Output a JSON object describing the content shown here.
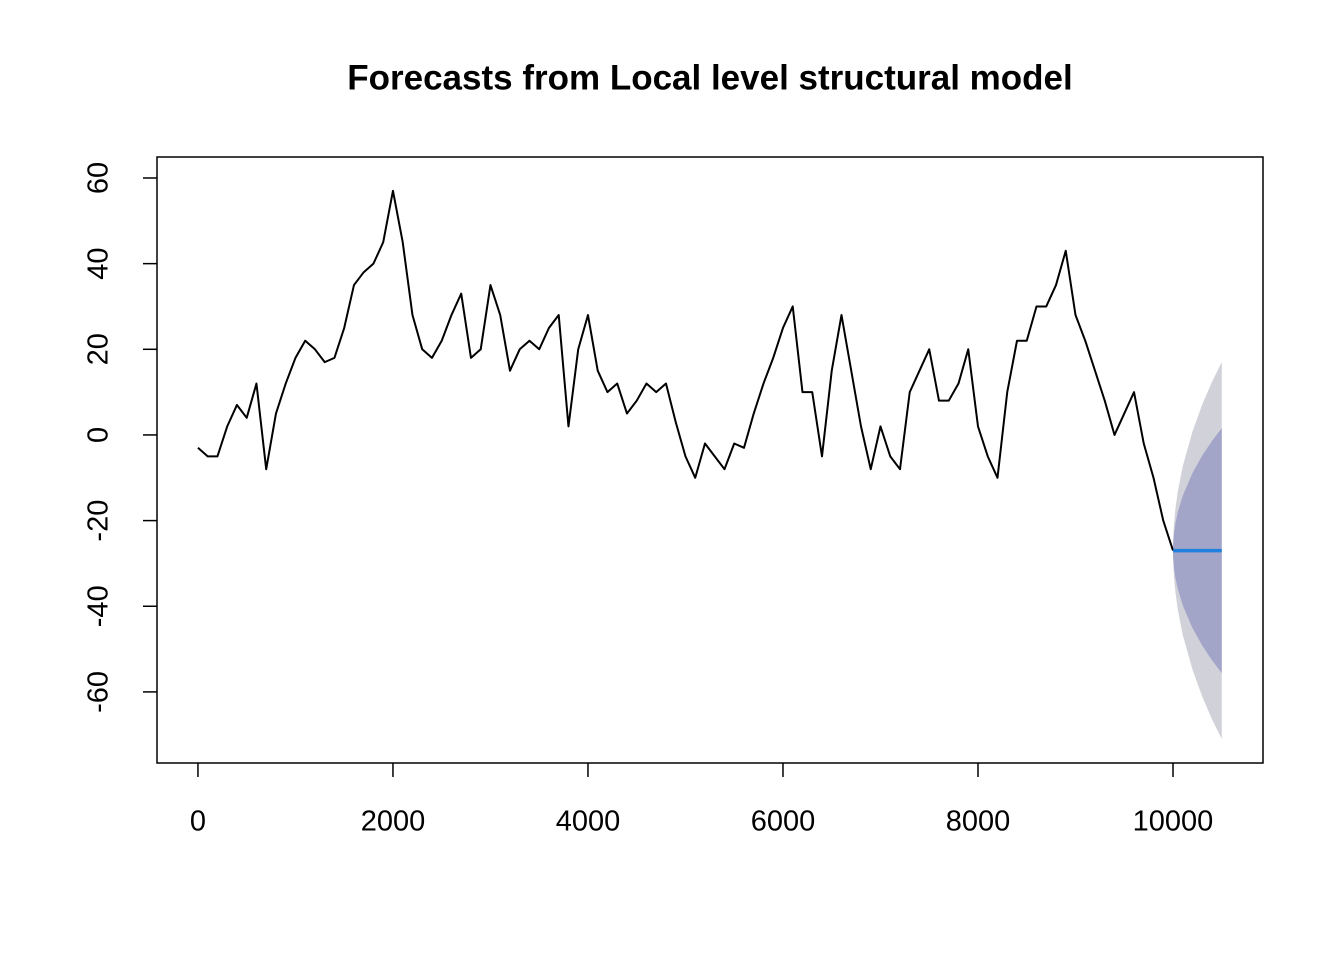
{
  "chart_data": {
    "type": "line",
    "title": "Forecasts from Local level structural model",
    "xlim": [
      -420,
      10923
    ],
    "ylim": [
      -76.6,
      64.9
    ],
    "xticks": [
      0,
      2000,
      4000,
      6000,
      8000,
      10000
    ],
    "yticks": [
      -60,
      -40,
      -20,
      0,
      20,
      40,
      60
    ],
    "series": [
      {
        "color": "#000000",
        "x": [
          0,
          100,
          200,
          300,
          400,
          500,
          600,
          700,
          800,
          900,
          1000,
          1100,
          1200,
          1300,
          1400,
          1500,
          1600,
          1700,
          1800,
          1900,
          2000,
          2100,
          2200,
          2300,
          2400,
          2500,
          2600,
          2700,
          2800,
          2900,
          3000,
          3100,
          3200,
          3300,
          3400,
          3500,
          3600,
          3700,
          3800,
          3900,
          4000,
          4100,
          4200,
          4300,
          4400,
          4500,
          4600,
          4700,
          4800,
          4900,
          5000,
          5100,
          5200,
          5300,
          5400,
          5500,
          5600,
          5700,
          5800,
          5900,
          6000,
          6100,
          6200,
          6300,
          6400,
          6500,
          6600,
          6700,
          6800,
          6900,
          7000,
          7100,
          7200,
          7300,
          7400,
          7500,
          7600,
          7700,
          7800,
          7900,
          8000,
          8100,
          8200,
          8300,
          8400,
          8500,
          8600,
          8700,
          8800,
          8900,
          9000,
          9100,
          9200,
          9300,
          9400,
          9500,
          9600,
          9700,
          9800,
          9900,
          10000
        ],
        "values": [
          -3,
          -5,
          -5,
          2,
          7,
          4,
          12,
          -8,
          5,
          12,
          18,
          22,
          20,
          17,
          18,
          25,
          35,
          38,
          40,
          45,
          57,
          45,
          28,
          20,
          18,
          22,
          28,
          33,
          18,
          20,
          35,
          28,
          15,
          20,
          22,
          20,
          25,
          28,
          2,
          20,
          28,
          15,
          10,
          12,
          5,
          8,
          12,
          10,
          12,
          3,
          -5,
          -10,
          -2,
          -5,
          -8,
          -2,
          -3,
          5,
          12,
          18,
          25,
          30,
          10,
          10,
          -5,
          15,
          28,
          15,
          2,
          -8,
          2,
          -5,
          -8,
          10,
          15,
          20,
          8,
          8,
          12,
          20,
          2,
          -5,
          -10,
          10,
          22,
          22,
          30,
          30,
          35,
          43,
          28,
          22,
          15,
          8,
          0,
          5,
          10,
          -2,
          -10,
          -20,
          -27
        ]
      }
    ],
    "forecast": {
      "band95_color": "#d1d1d9",
      "band80_color": "#a2a5c8",
      "mean_color": "#2080e0",
      "x": [
        10001,
        10010,
        10025,
        10050,
        10100,
        10200,
        10300,
        10400,
        10500
      ],
      "mean": [
        -27,
        -27,
        -27,
        -27,
        -27,
        -27,
        -27,
        -27,
        -27
      ],
      "lower80": [
        -28.3,
        -31,
        -33.4,
        -36,
        -39.8,
        -45.1,
        -49.2,
        -52.6,
        -55.6
      ],
      "upper80": [
        -25.7,
        -23,
        -20.6,
        -18,
        -14.2,
        -8.9,
        -4.8,
        -1.4,
        1.6
      ],
      "lower95": [
        -29,
        -33.2,
        -36.8,
        -40.9,
        -46.7,
        -54.8,
        -61.1,
        -66.4,
        -71
      ],
      "upper95": [
        -25,
        -20.8,
        -17.2,
        -13.1,
        -7.3,
        0.8,
        7.1,
        12.4,
        17
      ]
    }
  }
}
